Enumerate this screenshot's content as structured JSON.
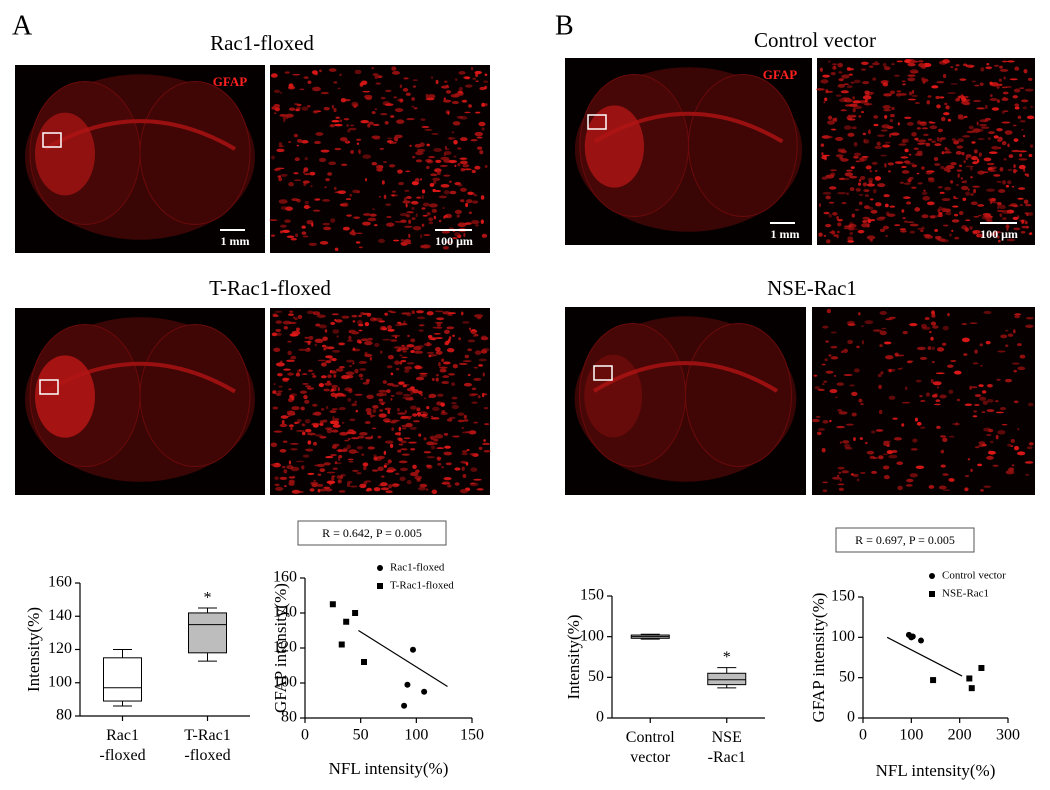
{
  "figure": {
    "panels": [
      {
        "label": "A",
        "rows": [
          {
            "title": "Rac1-floxed",
            "stain": "GFAP",
            "scale_bar_overview": "1 mm",
            "scale_bar_zoom": "100 μm"
          },
          {
            "title": "T-Rac1-floxed"
          }
        ]
      },
      {
        "label": "B",
        "rows": [
          {
            "title": "Control vector",
            "stain": "GFAP",
            "scale_bar_overview": "1 mm",
            "scale_bar_zoom": "100 μm"
          },
          {
            "title": "NSE-Rac1"
          }
        ]
      }
    ]
  },
  "chart_data": [
    {
      "type": "box",
      "ylabel": "Intensity(%)",
      "categories": [
        "Rac1 -floxed",
        "T-Rac1 -floxed"
      ],
      "min": [
        86,
        113
      ],
      "q1": [
        89,
        118
      ],
      "median": [
        97,
        135
      ],
      "q3": [
        115,
        142
      ],
      "max": [
        120,
        145
      ],
      "colors": [
        "#ffffff",
        "#bdbdbd"
      ],
      "significance": [
        null,
        "*"
      ],
      "ylim": [
        80,
        160
      ],
      "yticks": [
        80,
        100,
        120,
        140,
        160
      ]
    },
    {
      "type": "scatter",
      "annotation": "R = 0.642, P = 0.005",
      "xlabel": "NFL intensity(%)",
      "ylabel": "GFAP intensity(%)",
      "series": [
        {
          "name": "Rac1-floxed",
          "marker": "circle",
          "color": "#000000",
          "x": [
            97,
            92,
            89,
            107
          ],
          "y": [
            119,
            99,
            87,
            95
          ]
        },
        {
          "name": "T-Rac1-floxed",
          "marker": "square",
          "color": "#000000",
          "x": [
            25,
            37,
            45,
            33,
            53
          ],
          "y": [
            145,
            135,
            140,
            122,
            112
          ]
        }
      ],
      "fit": {
        "x": [
          48,
          128
        ],
        "y": [
          130,
          98
        ]
      },
      "xlim": [
        0,
        150
      ],
      "xticks": [
        0,
        50,
        100,
        150
      ],
      "ylim": [
        80,
        160
      ],
      "yticks": [
        80,
        100,
        120,
        140,
        160
      ]
    },
    {
      "type": "box",
      "ylabel": "Intensity(%)",
      "categories": [
        "Control vector",
        "NSE -Rac1"
      ],
      "min": [
        97,
        37
      ],
      "q1": [
        98,
        41
      ],
      "median": [
        100,
        47
      ],
      "q3": [
        102,
        55
      ],
      "max": [
        103,
        62
      ],
      "colors": [
        "#bdbdbd",
        "#bdbdbd"
      ],
      "significance": [
        null,
        "*"
      ],
      "ylim": [
        0,
        150
      ],
      "yticks": [
        0,
        50,
        100,
        150
      ]
    },
    {
      "type": "scatter",
      "annotation": "R = 0.697, P = 0.005",
      "xlabel": "NFL intensity(%)",
      "ylabel": "GFAP intensity(%)",
      "series": [
        {
          "name": "Control vector",
          "marker": "circle",
          "color": "#000000",
          "x": [
            95,
            103,
            120,
            100
          ],
          "y": [
            103,
            101,
            96,
            100
          ]
        },
        {
          "name": "NSE-Rac1",
          "marker": "square",
          "color": "#000000",
          "x": [
            145,
            220,
            225,
            245
          ],
          "y": [
            47,
            49,
            37,
            62
          ]
        }
      ],
      "fit": {
        "x": [
          50,
          205
        ],
        "y": [
          100,
          52
        ]
      },
      "xlim": [
        0,
        300
      ],
      "xticks": [
        0,
        100,
        200,
        300
      ],
      "ylim": [
        0,
        150
      ],
      "yticks": [
        0,
        50,
        100,
        150
      ]
    }
  ]
}
